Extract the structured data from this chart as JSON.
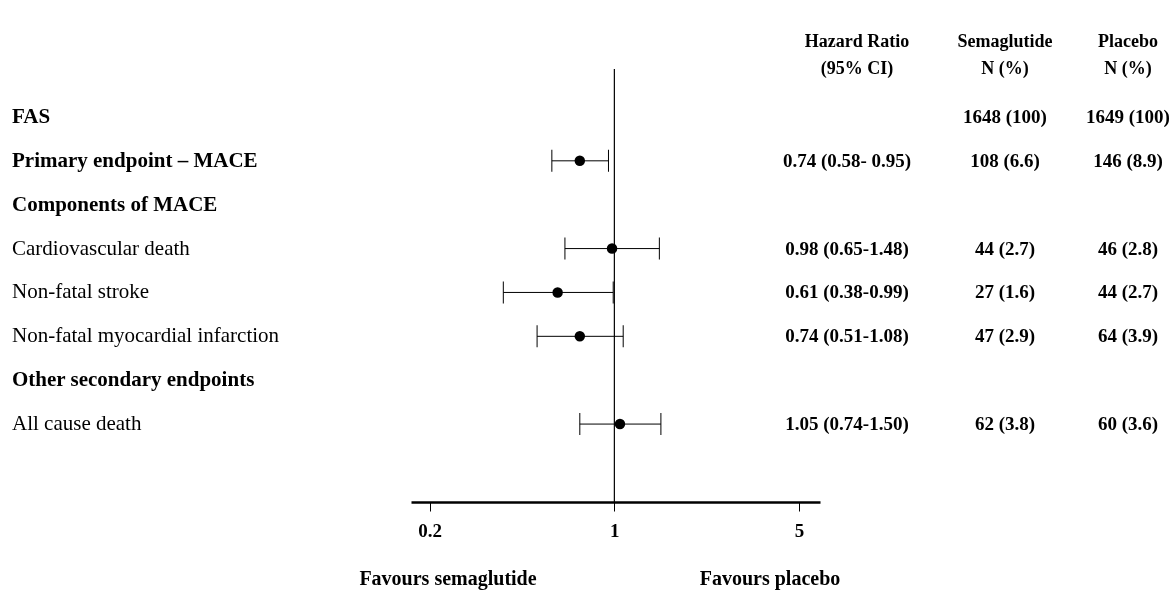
{
  "chart_data": {
    "type": "scatter",
    "orientation": "horizontal",
    "log": "x",
    "marker": "circle",
    "color": "#000000",
    "categories": [
      "FAS",
      "Primary endpoint – MACE",
      "Components of MACE",
      "Cardiovascular death",
      "Non-fatal stroke",
      "Non-fatal myocardial infarction",
      "Other secondary endpoints",
      "All cause death"
    ],
    "values": [
      null,
      0.74,
      null,
      0.98,
      0.61,
      0.74,
      null,
      1.05
    ],
    "errors": [
      null,
      [
        0.58,
        0.95
      ],
      null,
      [
        0.65,
        1.48
      ],
      [
        0.38,
        0.99
      ],
      [
        0.51,
        1.08
      ],
      null,
      [
        0.74,
        1.5
      ]
    ],
    "value_labels": [
      null,
      "0.74 (0.58- 0.95)",
      null,
      "0.98 (0.65-1.48)",
      "0.61 (0.38-0.99)",
      "0.74 (0.51-1.08)",
      null,
      "1.05 (0.74-1.50)"
    ],
    "xlim": [
      0.17,
      6
    ],
    "xticks": [
      0.2,
      1,
      5
    ],
    "ref_lines": [
      {
        "axis": "x",
        "value": 1
      }
    ],
    "annotations": [
      "Hazard Ratio\n(95% CI)",
      "Semaglutide\nN (%)",
      "Placebo\nN (%)",
      "Favours semaglutide",
      "Favours placebo",
      "1648 (100)",
      "1649 (100)",
      "108 (6.6)",
      "146 (8.9)",
      "44 (2.7)",
      "46 (2.8)",
      "27 (1.6)",
      "44 (2.7)",
      "47 (2.9)",
      "64 (3.9)",
      "62 (3.8)",
      "60 (3.6)"
    ]
  }
}
